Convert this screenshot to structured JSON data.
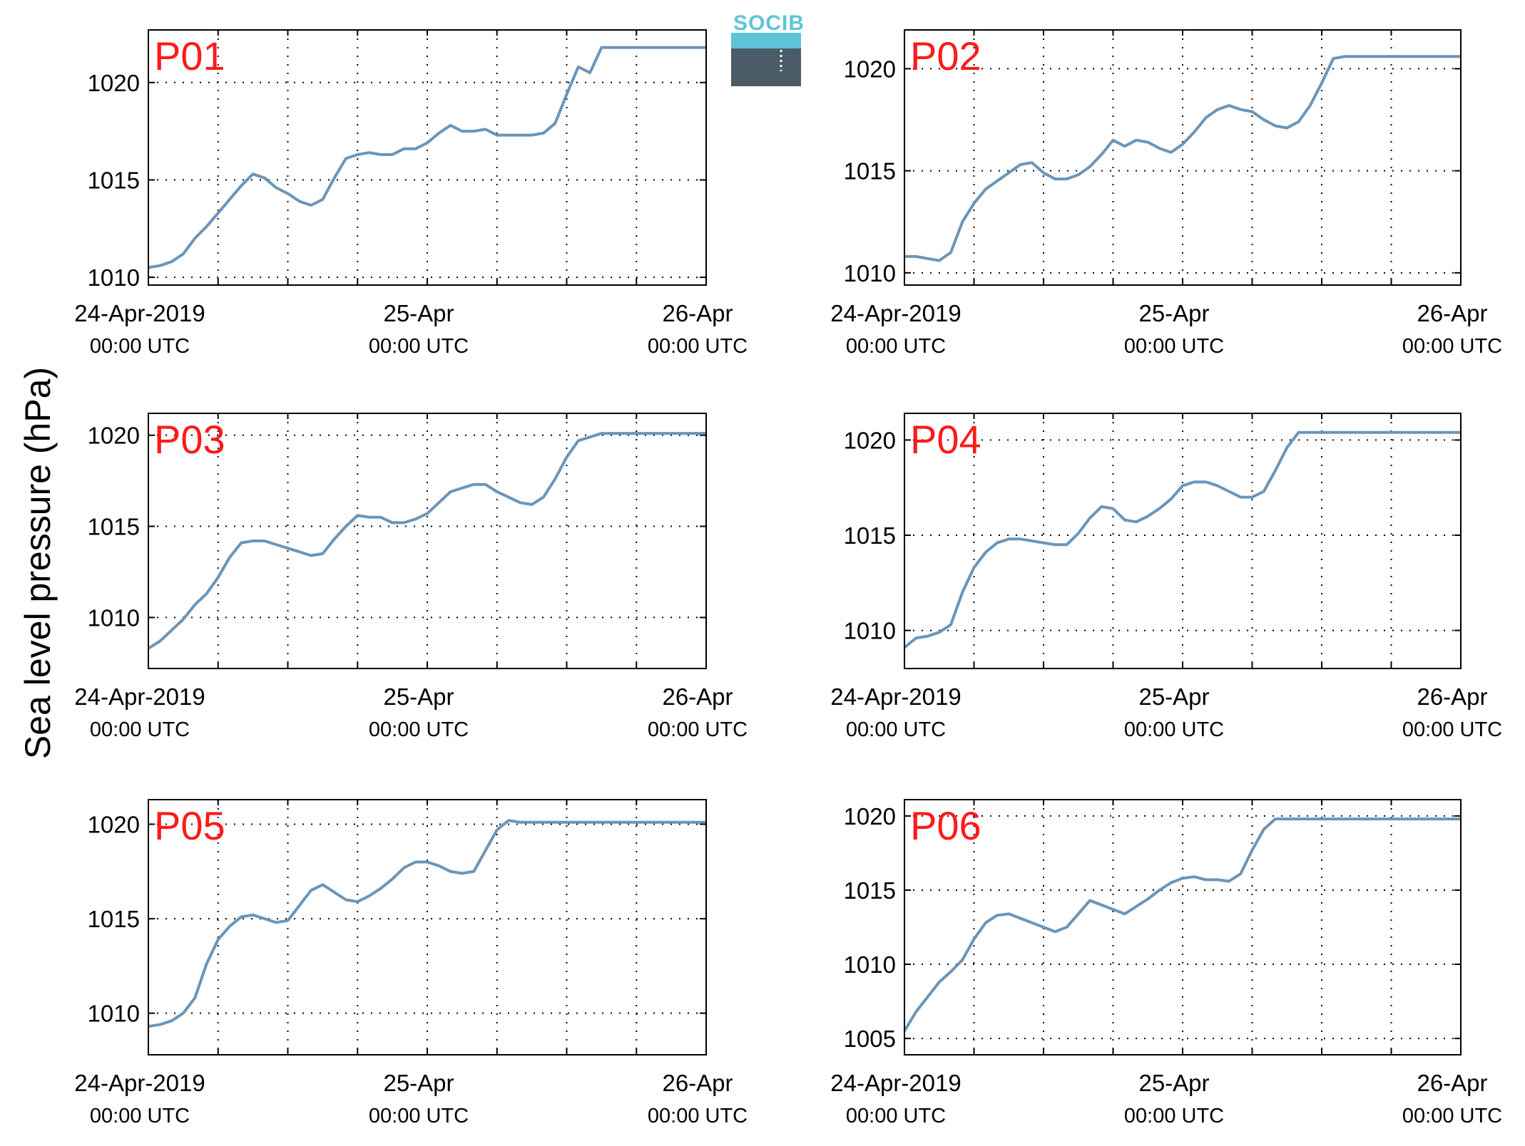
{
  "figure": {
    "ylabel": "Sea level pressure (hPa)",
    "logo_text": "SOCIB"
  },
  "colors": {
    "line": "#6b95b8",
    "title": "#ff1a1a",
    "grid": "#000000"
  },
  "chart_data": [
    {
      "type": "line",
      "title": "P01",
      "ylabel": "Sea level pressure (hPa)",
      "xlim": [
        0,
        48
      ],
      "ylim": [
        1009.6,
        1022.7
      ],
      "yticks": [
        1010,
        1015,
        1020
      ],
      "xticks": [
        {
          "x": 0,
          "top": "24-Apr-2019",
          "bottom": "00:00 UTC"
        },
        {
          "x": 24,
          "top": "25-Apr",
          "bottom": "00:00 UTC"
        },
        {
          "x": 48,
          "top": "26-Apr",
          "bottom": "00:00 UTC"
        }
      ],
      "grid": true,
      "series": [
        {
          "x": [
            0,
            1,
            2,
            3,
            4,
            5,
            6,
            7,
            8,
            9,
            10,
            11,
            12,
            13,
            14,
            15,
            16,
            17,
            18,
            19,
            20,
            21,
            22,
            23,
            24,
            25,
            26,
            27,
            28,
            29,
            30,
            31,
            32,
            33,
            34,
            35,
            36,
            37,
            38,
            39,
            40,
            41,
            42,
            43,
            44,
            45,
            46,
            47,
            48
          ],
          "y": [
            1010.5,
            1010.6,
            1010.8,
            1011.2,
            1012,
            1012.6,
            1013.3,
            1014,
            1014.7,
            1015.3,
            1015.1,
            1014.6,
            1014.3,
            1013.9,
            1013.7,
            1014,
            1015.1,
            1016.1,
            1016.3,
            1016.4,
            1016.3,
            1016.3,
            1016.6,
            1016.6,
            1016.9,
            1017.4,
            1017.8,
            1017.5,
            1017.5,
            1017.6,
            1017.3,
            1017.3,
            1017.3,
            1017.3,
            1017.4,
            1017.9,
            1019.4,
            1020.8,
            1020.5,
            1021.8,
            1021.8,
            1021.8,
            1021.8,
            1021.8,
            1021.8,
            1021.8,
            1021.8,
            1021.8,
            1021.8
          ]
        }
      ]
    },
    {
      "type": "line",
      "title": "P02",
      "ylabel": "Sea level pressure (hPa)",
      "xlim": [
        0,
        48
      ],
      "ylim": [
        1009.4,
        1021.9
      ],
      "yticks": [
        1010,
        1015,
        1020
      ],
      "xticks": [
        {
          "x": 0,
          "top": "24-Apr-2019",
          "bottom": "00:00 UTC"
        },
        {
          "x": 24,
          "top": "25-Apr",
          "bottom": "00:00 UTC"
        },
        {
          "x": 48,
          "top": "26-Apr",
          "bottom": "00:00 UTC"
        }
      ],
      "grid": true,
      "series": [
        {
          "x": [
            0,
            1,
            2,
            3,
            4,
            5,
            6,
            7,
            8,
            9,
            10,
            11,
            12,
            13,
            14,
            15,
            16,
            17,
            18,
            19,
            20,
            21,
            22,
            23,
            24,
            25,
            26,
            27,
            28,
            29,
            30,
            31,
            32,
            33,
            34,
            35,
            36,
            37,
            38,
            39,
            40,
            41,
            42,
            43,
            44,
            45,
            46,
            47,
            48
          ],
          "y": [
            1010.8,
            1010.8,
            1010.7,
            1010.6,
            1011,
            1012.5,
            1013.4,
            1014.1,
            1014.5,
            1014.9,
            1015.3,
            1015.4,
            1014.9,
            1014.6,
            1014.6,
            1014.8,
            1015.2,
            1015.8,
            1016.5,
            1016.2,
            1016.5,
            1016.4,
            1016.1,
            1015.9,
            1016.3,
            1016.9,
            1017.6,
            1018,
            1018.2,
            1018,
            1017.9,
            1017.5,
            1017.2,
            1017.1,
            1017.4,
            1018.2,
            1019.3,
            1020.5,
            1020.6,
            1020.6,
            1020.6,
            1020.6,
            1020.6,
            1020.6,
            1020.6,
            1020.6,
            1020.6,
            1020.6,
            1020.6
          ]
        }
      ]
    },
    {
      "type": "line",
      "title": "P03",
      "ylabel": "Sea level pressure (hPa)",
      "xlim": [
        0,
        48
      ],
      "ylim": [
        1007.2,
        1021.2
      ],
      "yticks": [
        1010,
        1015,
        1020
      ],
      "xticks": [
        {
          "x": 0,
          "top": "24-Apr-2019",
          "bottom": "00:00 UTC"
        },
        {
          "x": 24,
          "top": "25-Apr",
          "bottom": "00:00 UTC"
        },
        {
          "x": 48,
          "top": "26-Apr",
          "bottom": "00:00 UTC"
        }
      ],
      "grid": true,
      "series": [
        {
          "x": [
            0,
            1,
            2,
            3,
            4,
            5,
            6,
            7,
            8,
            9,
            10,
            11,
            12,
            13,
            14,
            15,
            16,
            17,
            18,
            19,
            20,
            21,
            22,
            23,
            24,
            25,
            26,
            27,
            28,
            29,
            30,
            31,
            32,
            33,
            34,
            35,
            36,
            37,
            38,
            39,
            40,
            41,
            42,
            43,
            44,
            45,
            46,
            47,
            48
          ],
          "y": [
            1008.3,
            1008.7,
            1009.3,
            1009.9,
            1010.7,
            1011.3,
            1012.2,
            1013.3,
            1014.1,
            1014.2,
            1014.2,
            1014,
            1013.8,
            1013.6,
            1013.4,
            1013.5,
            1014.3,
            1015,
            1015.6,
            1015.5,
            1015.5,
            1015.2,
            1015.2,
            1015.4,
            1015.7,
            1016.3,
            1016.9,
            1017.1,
            1017.3,
            1017.3,
            1016.9,
            1016.6,
            1016.3,
            1016.2,
            1016.6,
            1017.6,
            1018.8,
            1019.7,
            1019.9,
            1020.1,
            1020.1,
            1020.1,
            1020.1,
            1020.1,
            1020.1,
            1020.1,
            1020.1,
            1020.1,
            1020.1
          ]
        }
      ]
    },
    {
      "type": "line",
      "title": "P04",
      "ylabel": "Sea level pressure (hPa)",
      "xlim": [
        0,
        48
      ],
      "ylim": [
        1008,
        1021.4
      ],
      "yticks": [
        1010,
        1015,
        1020
      ],
      "xticks": [
        {
          "x": 0,
          "top": "24-Apr-2019",
          "bottom": "00:00 UTC"
        },
        {
          "x": 24,
          "top": "25-Apr",
          "bottom": "00:00 UTC"
        },
        {
          "x": 48,
          "top": "26-Apr",
          "bottom": "00:00 UTC"
        }
      ],
      "grid": true,
      "series": [
        {
          "x": [
            0,
            1,
            2,
            3,
            4,
            5,
            6,
            7,
            8,
            9,
            10,
            11,
            12,
            13,
            14,
            15,
            16,
            17,
            18,
            19,
            20,
            21,
            22,
            23,
            24,
            25,
            26,
            27,
            28,
            29,
            30,
            31,
            32,
            33,
            34,
            35,
            36,
            37,
            38,
            39,
            40,
            41,
            42,
            43,
            44,
            45,
            46,
            47,
            48
          ],
          "y": [
            1009.1,
            1009.6,
            1009.7,
            1009.9,
            1010.3,
            1012,
            1013.3,
            1014.1,
            1014.6,
            1014.8,
            1014.8,
            1014.7,
            1014.6,
            1014.5,
            1014.5,
            1015.1,
            1015.9,
            1016.5,
            1016.4,
            1015.8,
            1015.7,
            1016,
            1016.4,
            1016.9,
            1017.6,
            1017.8,
            1017.8,
            1017.6,
            1017.3,
            1017,
            1017,
            1017.3,
            1018.4,
            1019.6,
            1020.4,
            1020.4,
            1020.4,
            1020.4,
            1020.4,
            1020.4,
            1020.4,
            1020.4,
            1020.4,
            1020.4,
            1020.4,
            1020.4,
            1020.4,
            1020.4,
            1020.4
          ]
        }
      ]
    },
    {
      "type": "line",
      "title": "P05",
      "ylabel": "Sea level pressure (hPa)",
      "xlim": [
        0,
        48
      ],
      "ylim": [
        1007.8,
        1021.3
      ],
      "yticks": [
        1010,
        1015,
        1020
      ],
      "xticks": [
        {
          "x": 0,
          "top": "24-Apr-2019",
          "bottom": "00:00 UTC"
        },
        {
          "x": 24,
          "top": "25-Apr",
          "bottom": "00:00 UTC"
        },
        {
          "x": 48,
          "top": "26-Apr",
          "bottom": "00:00 UTC"
        }
      ],
      "grid": true,
      "series": [
        {
          "x": [
            0,
            1,
            2,
            3,
            4,
            5,
            6,
            7,
            8,
            9,
            10,
            11,
            12,
            13,
            14,
            15,
            16,
            17,
            18,
            19,
            20,
            21,
            22,
            23,
            24,
            25,
            26,
            27,
            28,
            29,
            30,
            31,
            32,
            33,
            34,
            35,
            36,
            37,
            38,
            39,
            40,
            41,
            42,
            43,
            44,
            45,
            46,
            47,
            48
          ],
          "y": [
            1009.3,
            1009.4,
            1009.6,
            1010,
            1010.8,
            1012.6,
            1013.9,
            1014.6,
            1015.1,
            1015.2,
            1015,
            1014.8,
            1014.9,
            1015.7,
            1016.5,
            1016.8,
            1016.4,
            1016,
            1015.9,
            1016.2,
            1016.6,
            1017.1,
            1017.7,
            1018,
            1018,
            1017.8,
            1017.5,
            1017.4,
            1017.5,
            1018.6,
            1019.7,
            1020.2,
            1020.1,
            1020.1,
            1020.1,
            1020.1,
            1020.1,
            1020.1,
            1020.1,
            1020.1,
            1020.1,
            1020.1,
            1020.1,
            1020.1,
            1020.1,
            1020.1,
            1020.1,
            1020.1,
            1020.1
          ]
        }
      ]
    },
    {
      "type": "line",
      "title": "P06",
      "ylabel": "Sea level pressure (hPa)",
      "xlim": [
        0,
        48
      ],
      "ylim": [
        1003.9,
        1021.1
      ],
      "yticks": [
        1005,
        1010,
        1015,
        1020
      ],
      "xticks": [
        {
          "x": 0,
          "top": "24-Apr-2019",
          "bottom": "00:00 UTC"
        },
        {
          "x": 24,
          "top": "25-Apr",
          "bottom": "00:00 UTC"
        },
        {
          "x": 48,
          "top": "26-Apr",
          "bottom": "00:00 UTC"
        }
      ],
      "grid": true,
      "series": [
        {
          "x": [
            0,
            1,
            2,
            3,
            4,
            5,
            6,
            7,
            8,
            9,
            10,
            11,
            12,
            13,
            14,
            15,
            16,
            17,
            18,
            19,
            20,
            21,
            22,
            23,
            24,
            25,
            26,
            27,
            28,
            29,
            30,
            31,
            32,
            33,
            34,
            35,
            36,
            37,
            38,
            39,
            40,
            41,
            42,
            43,
            44,
            45,
            46,
            47,
            48
          ],
          "y": [
            1005.5,
            1006.8,
            1007.8,
            1008.8,
            1009.5,
            1010.3,
            1011.7,
            1012.8,
            1013.3,
            1013.4,
            1013.1,
            1012.8,
            1012.5,
            1012.2,
            1012.5,
            1013.4,
            1014.3,
            1014,
            1013.7,
            1013.4,
            1013.9,
            1014.4,
            1015,
            1015.5,
            1015.8,
            1015.9,
            1015.7,
            1015.7,
            1015.6,
            1016.1,
            1017.7,
            1019.1,
            1019.8,
            1019.8,
            1019.8,
            1019.8,
            1019.8,
            1019.8,
            1019.8,
            1019.8,
            1019.8,
            1019.8,
            1019.8,
            1019.8,
            1019.8,
            1019.8,
            1019.8,
            1019.8,
            1019.8
          ]
        }
      ]
    }
  ]
}
